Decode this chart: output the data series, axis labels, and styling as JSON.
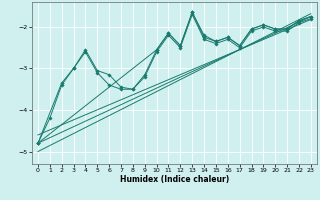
{
  "xlabel": "Humidex (Indice chaleur)",
  "ylabel": "",
  "bg_color": "#cff0ee",
  "line_color": "#1a7a6e",
  "grid_color": "#ffffff",
  "xlim": [
    -0.5,
    23.5
  ],
  "ylim": [
    -5.3,
    -1.4
  ],
  "yticks": [
    -5,
    -4,
    -3,
    -2
  ],
  "xticks": [
    0,
    1,
    2,
    3,
    4,
    5,
    6,
    7,
    8,
    9,
    10,
    11,
    12,
    13,
    14,
    15,
    16,
    17,
    18,
    19,
    20,
    21,
    22,
    23
  ],
  "series_marker": [
    {
      "x": [
        0,
        1,
        2,
        3,
        4,
        5,
        6,
        7,
        8,
        9,
        10,
        11,
        12,
        13,
        14,
        15,
        16,
        17,
        18,
        19,
        20,
        21,
        22,
        23
      ],
      "y": [
        -4.8,
        -4.2,
        -3.4,
        -3.0,
        -2.6,
        -3.1,
        -3.4,
        -3.5,
        -3.5,
        -3.2,
        -2.6,
        -2.2,
        -2.5,
        -1.7,
        -2.3,
        -2.4,
        -2.3,
        -2.5,
        -2.1,
        -2.0,
        -2.1,
        -2.1,
        -1.9,
        -1.8
      ]
    },
    {
      "x": [
        0,
        2,
        3,
        4,
        5,
        6,
        7,
        8,
        9,
        10,
        11,
        12,
        13,
        14,
        15,
        16,
        17,
        18,
        19,
        20,
        21,
        22,
        23
      ],
      "y": [
        -4.8,
        -3.35,
        -3.0,
        -2.55,
        -3.05,
        -3.15,
        -3.45,
        -3.5,
        -3.15,
        -2.55,
        -2.15,
        -2.45,
        -1.65,
        -2.25,
        -2.35,
        -2.25,
        -2.45,
        -2.05,
        -1.95,
        -2.05,
        -2.05,
        -1.85,
        -1.75
      ]
    },
    {
      "x": [
        0,
        10,
        11,
        12,
        13,
        14,
        15,
        16,
        17,
        18,
        19,
        20,
        21,
        22,
        23
      ],
      "y": [
        -4.8,
        -2.55,
        -2.15,
        -2.45,
        -1.65,
        -2.2,
        -2.35,
        -2.25,
        -2.45,
        -2.05,
        -1.95,
        -2.05,
        -2.05,
        -1.85,
        -1.75
      ]
    }
  ],
  "series_line": [
    {
      "x": [
        0,
        23
      ],
      "y": [
        -4.8,
        -1.75
      ]
    },
    {
      "x": [
        0,
        23
      ],
      "y": [
        -4.6,
        -1.82
      ]
    },
    {
      "x": [
        0,
        23
      ],
      "y": [
        -5.0,
        -1.68
      ]
    }
  ]
}
